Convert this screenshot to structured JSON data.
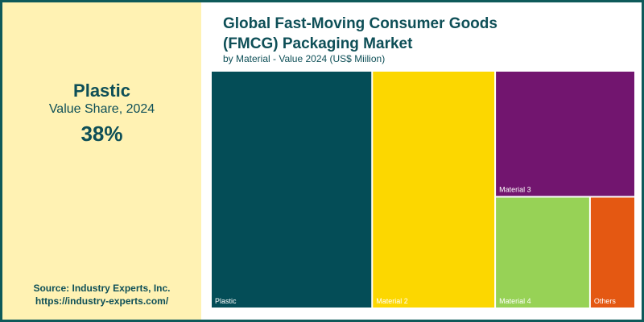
{
  "highlight": {
    "name": "Plastic",
    "subtitle": "Value Share, 2024",
    "value": "38%"
  },
  "source": {
    "line1": "Source: Industry Experts, Inc.",
    "line2": "https://industry-experts.com/"
  },
  "chart_data": {
    "type": "treemap",
    "title_line1": "Global Fast-Moving Consumer Goods",
    "title_line2": "(FMCG) Packaging Market",
    "subtitle": "by Material - Value 2024 (US$ Miilion)",
    "items": [
      {
        "label": "Plastic",
        "share": 38,
        "color": "#044d57"
      },
      {
        "label": "Material 2",
        "share": 29,
        "color": "#fcd700"
      },
      {
        "label": "Material 3",
        "share": 17.5,
        "color": "#72156f"
      },
      {
        "label": "Material 4",
        "share": 10.5,
        "color": "#97d256"
      },
      {
        "label": "Others",
        "share": 5,
        "color": "#e45812"
      }
    ]
  }
}
